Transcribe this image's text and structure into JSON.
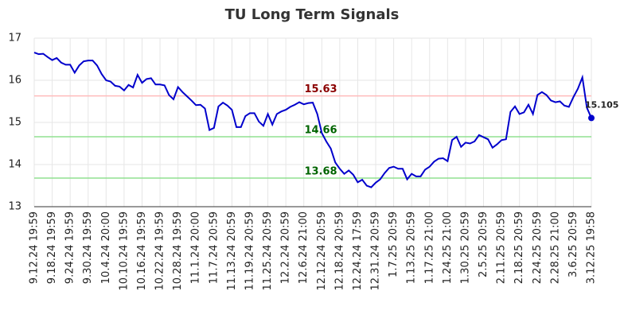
{
  "chart_data": {
    "type": "line",
    "title": "TU Long Term Signals",
    "categories": [
      "9.12.24 19:59",
      null,
      null,
      null,
      "9.18.24 19:59",
      null,
      null,
      null,
      "9.24.24 19:59",
      null,
      null,
      null,
      "9.30.24 19:59",
      null,
      null,
      null,
      "10.4.24 20:00",
      null,
      null,
      null,
      "10.10.24 19:59",
      null,
      null,
      null,
      "10.16.24 19:59",
      null,
      null,
      null,
      "10.22.24 19:59",
      null,
      null,
      null,
      "10.28.24 19:59",
      null,
      null,
      null,
      "11.1.24 20:00",
      null,
      null,
      null,
      "11.7.24 20:59",
      null,
      null,
      null,
      "11.13.24 20:59",
      null,
      null,
      null,
      "11.19.24 20:59",
      null,
      null,
      null,
      "11.25.24 20:59",
      null,
      null,
      null,
      "12.2.24 20:59",
      null,
      null,
      null,
      "12.6.24 21:00",
      null,
      null,
      null,
      "12.12.24 20:59",
      null,
      null,
      null,
      "12.18.24 20:59",
      null,
      null,
      null,
      "12.24.24 17:59",
      null,
      null,
      null,
      "12.31.24 20:59",
      null,
      null,
      null,
      "1.7.25 20:59",
      null,
      null,
      null,
      "1.13.25 20:59",
      null,
      null,
      null,
      "1.17.25 21:00",
      null,
      null,
      null,
      "1.24.25 21:00",
      null,
      null,
      null,
      "1.30.25 20:59",
      null,
      null,
      null,
      "2.5.25 20:59",
      null,
      null,
      null,
      "2.11.25 20:59",
      null,
      null,
      null,
      "2.18.25 20:59",
      null,
      null,
      null,
      "2.24.25 20:59",
      null,
      null,
      null,
      "2.28.25 21:00",
      null,
      null,
      null,
      "3.6.25 20:59",
      null,
      null,
      null,
      "3.12.25 19:58"
    ],
    "series": [
      {
        "color": "#0000cc",
        "values": [
          16.66,
          16.62,
          16.63,
          16.55,
          16.48,
          16.53,
          16.42,
          16.37,
          16.37,
          16.18,
          16.35,
          16.45,
          16.47,
          16.47,
          16.35,
          16.15,
          16.0,
          15.97,
          15.87,
          15.85,
          15.76,
          15.89,
          15.83,
          16.13,
          15.94,
          16.03,
          16.05,
          15.9,
          15.9,
          15.88,
          15.65,
          15.55,
          15.84,
          15.72,
          15.62,
          15.52,
          15.41,
          15.42,
          15.33,
          14.82,
          14.87,
          15.38,
          15.47,
          15.4,
          15.3,
          14.89,
          14.89,
          15.15,
          15.22,
          15.22,
          15.02,
          14.92,
          15.2,
          14.95,
          15.2,
          15.26,
          15.3,
          15.37,
          15.42,
          15.48,
          15.43,
          15.46,
          15.47,
          15.2,
          14.75,
          14.55,
          14.38,
          14.05,
          13.9,
          13.78,
          13.86,
          13.76,
          13.58,
          13.64,
          13.5,
          13.46,
          13.57,
          13.65,
          13.8,
          13.92,
          13.95,
          13.9,
          13.9,
          13.65,
          13.78,
          13.72,
          13.72,
          13.88,
          13.95,
          14.07,
          14.14,
          14.15,
          14.08,
          14.58,
          14.66,
          14.42,
          14.52,
          14.5,
          14.55,
          14.7,
          14.65,
          14.6,
          14.4,
          14.48,
          14.58,
          14.6,
          15.25,
          15.38,
          15.2,
          15.24,
          15.42,
          15.2,
          15.65,
          15.72,
          15.65,
          15.52,
          15.48,
          15.5,
          15.4,
          15.37,
          15.6,
          15.8,
          16.07,
          15.35,
          15.105
        ]
      }
    ],
    "hlines": [
      {
        "value": 15.63,
        "color": "#ffbbbb",
        "label_color": "#8b0000"
      },
      {
        "value": 14.66,
        "color": "#90e090",
        "label_color": "#006400"
      },
      {
        "value": 13.68,
        "color": "#90e090",
        "label_color": "#006400"
      }
    ],
    "ylim": [
      13,
      17
    ],
    "yticks": [
      13,
      14,
      15,
      16,
      17
    ],
    "grid": true
  }
}
